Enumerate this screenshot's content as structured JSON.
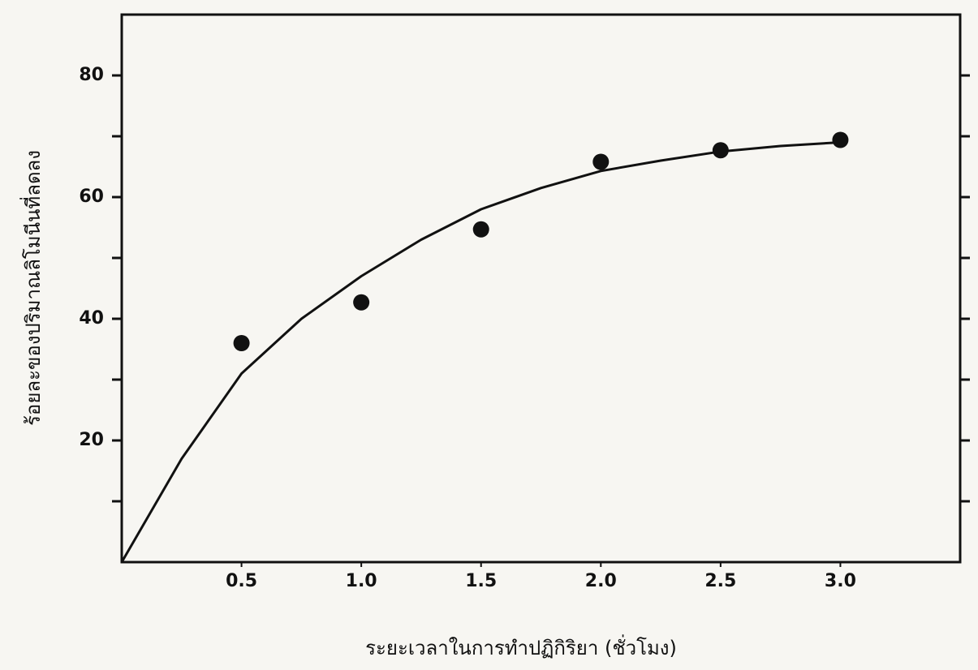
{
  "chart_data": {
    "type": "scatter",
    "x_label": "ระยะเวลาในการทำปฏิกิริยา (ชั่วโมง)",
    "y_label": "ร้อยละของปริมาณลิโมนีนที่ลดลง",
    "xlim": [
      0,
      3.5
    ],
    "ylim": [
      0,
      90
    ],
    "xticks": [
      0.5,
      {
        "value": 1,
        "label": "1.0"
      },
      1.5,
      {
        "value": 2,
        "label": "2.0"
      },
      2.5,
      {
        "value": 3,
        "label": "3.0"
      }
    ],
    "yticks": [
      20,
      40,
      60,
      80
    ],
    "yminor_ticks": [
      10,
      30,
      50,
      70
    ],
    "x": [
      0.5,
      1,
      1.5,
      2,
      2.5,
      3
    ],
    "values": [
      36,
      42.7,
      54.7,
      65.8,
      67.7,
      69.4
    ],
    "color": "#111111",
    "fit_curve": {
      "x": [
        0,
        0.25,
        0.5,
        0.75,
        1,
        1.25,
        1.5,
        1.75,
        2,
        2.25,
        2.5,
        2.75,
        3
      ],
      "values": [
        0,
        17,
        31,
        40,
        47,
        53,
        58,
        61.5,
        64.3,
        66,
        67.5,
        68.4,
        69
      ],
      "color": "#111111"
    }
  }
}
